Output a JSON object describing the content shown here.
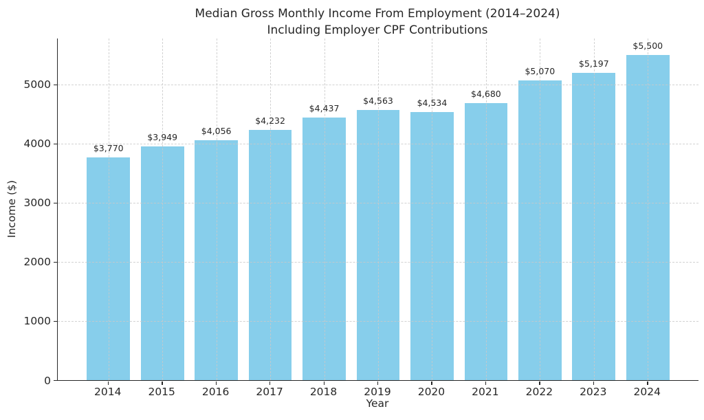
{
  "chart_data": {
    "type": "bar",
    "title": "Median Gross Monthly Income From Employment (2014–2024)",
    "subtitle": "Including Employer CPF Contributions",
    "xlabel": "Year",
    "ylabel": "Income ($)",
    "categories": [
      "2014",
      "2015",
      "2016",
      "2017",
      "2018",
      "2019",
      "2020",
      "2021",
      "2022",
      "2023",
      "2024"
    ],
    "values": [
      3770,
      3949,
      4056,
      4232,
      4437,
      4563,
      4534,
      4680,
      5070,
      5197,
      5500
    ],
    "value_labels": [
      "$3,770",
      "$3,949",
      "$4,056",
      "$4,232",
      "$4,437",
      "$4,563",
      "$4,534",
      "$4,680",
      "$5,070",
      "$5,197",
      "$5,500"
    ],
    "yticks": [
      0,
      1000,
      2000,
      3000,
      4000,
      5000
    ],
    "ylim": [
      0,
      5775
    ],
    "bar_color": "#87CEEB",
    "grid": "dashed, both axes, drawn over bars",
    "grid_color": "#c9c9c9",
    "axis_color": "#262626",
    "text_color": "#262626",
    "legend_position": "none"
  }
}
